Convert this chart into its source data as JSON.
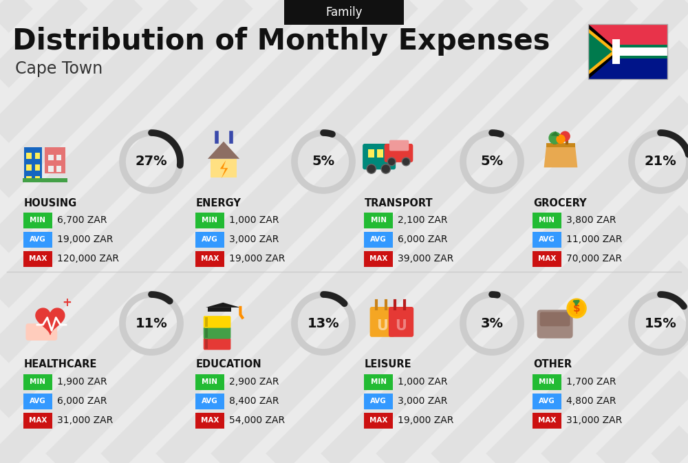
{
  "title": "Distribution of Monthly Expenses",
  "subtitle": "Cape Town",
  "tag": "Family",
  "bg_color": "#ebebeb",
  "categories": [
    {
      "name": "HOUSING",
      "percent": 27,
      "min_val": "6,700 ZAR",
      "avg_val": "19,000 ZAR",
      "max_val": "120,000 ZAR",
      "icon": "housing",
      "row": 0,
      "col": 0
    },
    {
      "name": "ENERGY",
      "percent": 5,
      "min_val": "1,000 ZAR",
      "avg_val": "3,000 ZAR",
      "max_val": "19,000 ZAR",
      "icon": "energy",
      "row": 0,
      "col": 1
    },
    {
      "name": "TRANSPORT",
      "percent": 5,
      "min_val": "2,100 ZAR",
      "avg_val": "6,000 ZAR",
      "max_val": "39,000 ZAR",
      "icon": "transport",
      "row": 0,
      "col": 2
    },
    {
      "name": "GROCERY",
      "percent": 21,
      "min_val": "3,800 ZAR",
      "avg_val": "11,000 ZAR",
      "max_val": "70,000 ZAR",
      "icon": "grocery",
      "row": 0,
      "col": 3
    },
    {
      "name": "HEALTHCARE",
      "percent": 11,
      "min_val": "1,900 ZAR",
      "avg_val": "6,000 ZAR",
      "max_val": "31,000 ZAR",
      "icon": "healthcare",
      "row": 1,
      "col": 0
    },
    {
      "name": "EDUCATION",
      "percent": 13,
      "min_val": "2,900 ZAR",
      "avg_val": "8,400 ZAR",
      "max_val": "54,000 ZAR",
      "icon": "education",
      "row": 1,
      "col": 1
    },
    {
      "name": "LEISURE",
      "percent": 3,
      "min_val": "1,000 ZAR",
      "avg_val": "3,000 ZAR",
      "max_val": "19,000 ZAR",
      "icon": "leisure",
      "row": 1,
      "col": 2
    },
    {
      "name": "OTHER",
      "percent": 15,
      "min_val": "1,700 ZAR",
      "avg_val": "4,800 ZAR",
      "max_val": "31,000 ZAR",
      "icon": "other",
      "row": 1,
      "col": 3
    }
  ],
  "min_color": "#22bb33",
  "avg_color": "#3399ff",
  "max_color": "#cc1111",
  "label_color": "#ffffff",
  "title_color": "#111111",
  "subtitle_color": "#333333",
  "tag_bg": "#111111",
  "tag_color": "#ffffff",
  "donut_dark": "#222222",
  "donut_light": "#cccccc",
  "stripe_color": "#d8d8d8",
  "flag_colors": {
    "red": "#e8334a",
    "green": "#007a4d",
    "blue": "#001489",
    "black": "#000000",
    "white": "#ffffff",
    "yellow": "#ffb612"
  }
}
